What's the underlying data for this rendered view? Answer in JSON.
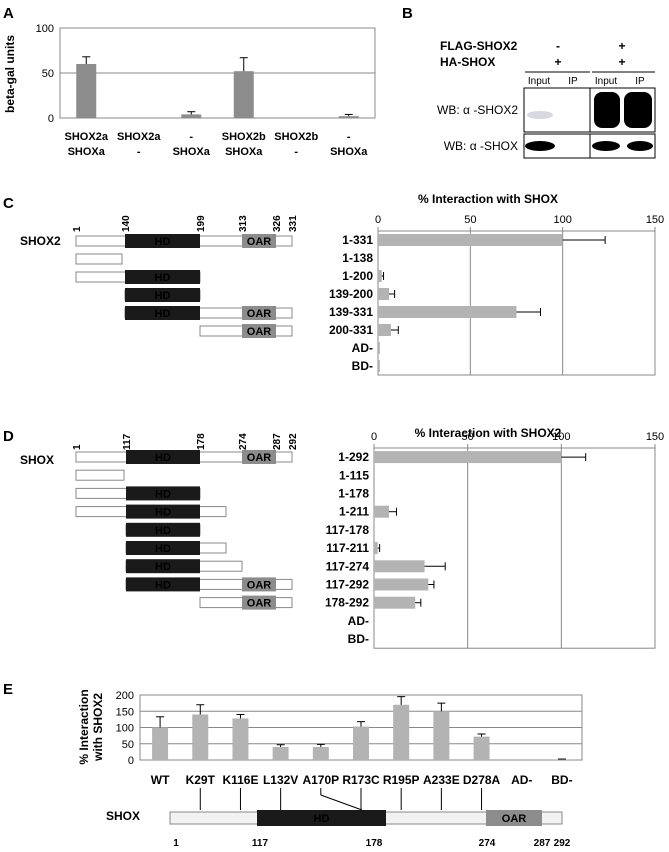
{
  "panels": {
    "A": "A",
    "B": "B",
    "C": "C",
    "D": "D",
    "E": "E"
  },
  "panel_a": {
    "chart_data": {
      "type": "bar",
      "ylabel": "beta-gal units",
      "ylim": [
        0,
        100
      ],
      "yticks": [
        "0",
        "50",
        "100"
      ],
      "categories": [
        [
          "SHOX2a",
          "SHOXa"
        ],
        [
          "SHOX2a",
          "-"
        ],
        [
          "-",
          "SHOXa"
        ],
        [
          "SHOX2b",
          "SHOXa"
        ],
        [
          "SHOX2b",
          "-"
        ],
        [
          "-",
          "SHOXa"
        ]
      ],
      "values": [
        60,
        0,
        4,
        52,
        0,
        2
      ],
      "errors": [
        8,
        0,
        3,
        15,
        0,
        2
      ],
      "bar_color": "#8c8c8c"
    }
  },
  "panel_b": {
    "row1_label": "FLAG-SHOX2",
    "row2_label": "HA-SHOX",
    "signs": [
      "-",
      "+",
      "+",
      "+"
    ],
    "col_labels": [
      "Input",
      "IP",
      "Input",
      "IP"
    ],
    "wb1_label": "WB: α -SHOX2",
    "wb2_label": "WB: α -SHOX"
  },
  "panel_c": {
    "construct": "SHOX2",
    "positions": [
      "1",
      "140",
      "199",
      "313",
      "326",
      "331"
    ],
    "hd": "HD",
    "oar": "OAR",
    "chart_data": {
      "type": "bar",
      "title": "% Interaction with SHOX",
      "xlim": [
        0,
        150
      ],
      "xticks": [
        "0",
        "50",
        "100",
        "150"
      ],
      "categories": [
        "1-331",
        "1-138",
        "1-200",
        "139-200",
        "139-331",
        "200-331",
        "AD-",
        "BD-"
      ],
      "values": [
        100,
        0,
        2,
        6,
        75,
        7,
        1,
        1
      ],
      "errors": [
        23,
        0,
        1,
        3,
        13,
        4,
        0,
        0
      ],
      "bar_color": "#b3b3b3"
    }
  },
  "panel_d": {
    "construct": "SHOX",
    "positions": [
      "1",
      "117",
      "178",
      "274",
      "287",
      "292"
    ],
    "hd": "HD",
    "oar": "OAR",
    "chart_data": {
      "type": "bar",
      "title": "% Interaction with SHOX2",
      "xlim": [
        0,
        150
      ],
      "xticks": [
        "0",
        "50",
        "100",
        "150"
      ],
      "categories": [
        "1-292",
        "1-115",
        "1-178",
        "1-211",
        "117-178",
        "117-211",
        "117-274",
        "117-292",
        "178-292",
        "AD-",
        "BD-"
      ],
      "values": [
        100,
        0,
        0,
        8,
        0,
        2,
        27,
        29,
        22,
        0,
        0
      ],
      "errors": [
        13,
        0,
        0,
        4,
        0,
        1,
        11,
        3,
        3,
        0,
        0
      ],
      "bar_color": "#b3b3b3"
    }
  },
  "panel_e": {
    "construct": "SHOX",
    "positions": [
      "1",
      "117",
      "178",
      "274",
      "287",
      "292"
    ],
    "hd": "HD",
    "oar": "OAR",
    "chart_data": {
      "type": "bar",
      "ylabel": "% Interaction with SHOX2",
      "ylim": [
        0,
        200
      ],
      "yticks": [
        "0",
        "50",
        "100",
        "150",
        "200"
      ],
      "categories": [
        "WT",
        "K29T",
        "K116E",
        "L132V",
        "A170P",
        "R173C",
        "R195P",
        "A233E",
        "D278A",
        "AD-",
        "BD-"
      ],
      "values": [
        100,
        140,
        128,
        40,
        40,
        103,
        170,
        150,
        72,
        0,
        2
      ],
      "errors": [
        33,
        30,
        12,
        7,
        8,
        15,
        25,
        25,
        8,
        0,
        1
      ],
      "bar_color": "#b3b3b3"
    }
  }
}
